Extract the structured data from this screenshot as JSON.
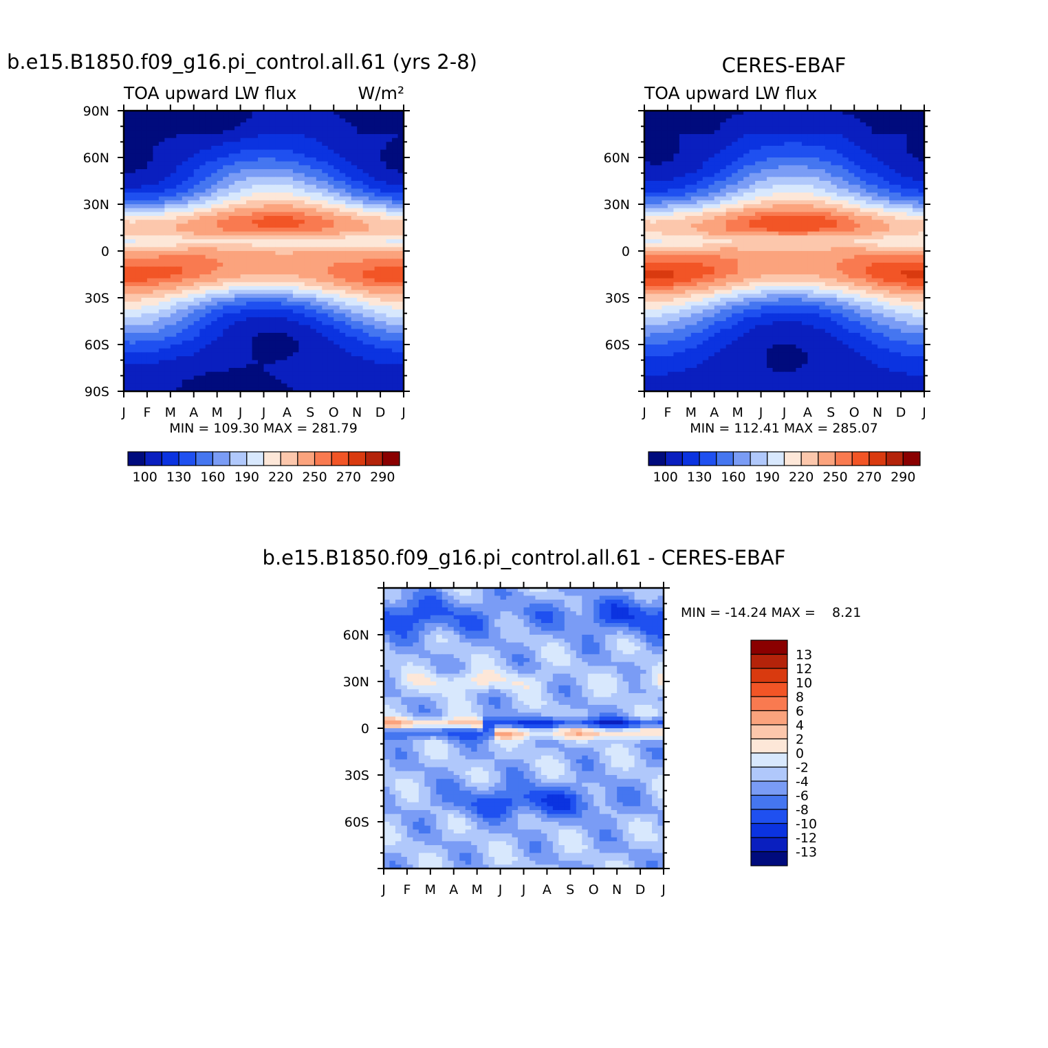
{
  "chart_data": [
    {
      "id": "model",
      "type": "heatmap",
      "title": "b.e15.B1850.f09_g16.pi_control.all.61 (yrs 2-8)",
      "subtitle_left": "TOA upward LW flux",
      "subtitle_right": "W/m²",
      "x_ticks": [
        "J",
        "F",
        "M",
        "A",
        "M",
        "J",
        "J",
        "A",
        "S",
        "O",
        "N",
        "D",
        "J"
      ],
      "y_ticks": [
        "90N",
        "60N",
        "30N",
        "0",
        "30S",
        "60S",
        "90S"
      ],
      "stats": "MIN = 109.30 MAX = 281.79",
      "levels": [
        "100",
        "130",
        "160",
        "190",
        "220",
        "250",
        "270",
        "290"
      ]
    },
    {
      "id": "obs",
      "type": "heatmap",
      "title": "CERES-EBAF",
      "subtitle_left": "TOA upward LW flux",
      "x_ticks": [
        "J",
        "F",
        "M",
        "A",
        "M",
        "J",
        "J",
        "A",
        "S",
        "O",
        "N",
        "D",
        "J"
      ],
      "y_ticks": [
        "60N",
        "30N",
        "0",
        "30S",
        "60S"
      ],
      "stats": "MIN = 112.41 MAX = 285.07",
      "levels": [
        "100",
        "130",
        "160",
        "190",
        "220",
        "250",
        "270",
        "290"
      ]
    },
    {
      "id": "diff",
      "type": "heatmap",
      "title": "b.e15.B1850.f09_g16.pi_control.all.61 - CERES-EBAF",
      "x_ticks": [
        "J",
        "F",
        "M",
        "A",
        "M",
        "J",
        "J",
        "A",
        "S",
        "O",
        "N",
        "D",
        "J"
      ],
      "y_ticks": [
        "60N",
        "30N",
        "0",
        "30S",
        "60S"
      ],
      "stats": "MIN = -14.24 MAX =    8.21",
      "levels": [
        "13",
        "12",
        "10",
        "8",
        "6",
        "4",
        "2",
        "0",
        "-2",
        "-4",
        "-6",
        "-8",
        "-10",
        "-12",
        "-13"
      ]
    }
  ],
  "colors": {
    "abs_palette": [
      "#000b7d",
      "#0a1fbf",
      "#0b33e0",
      "#1f50f0",
      "#4576f0",
      "#7a9cf5",
      "#b0c8fb",
      "#d8e8fd",
      "#fde7d8",
      "#fcc7ac",
      "#fba37d",
      "#f97a50",
      "#f25526",
      "#d93a0f",
      "#b4230a",
      "#8a0000"
    ],
    "diff_palette": [
      "#8a0000",
      "#b4230a",
      "#d93a0f",
      "#f25526",
      "#f97a50",
      "#fba37d",
      "#fcc7ac",
      "#fde7d8",
      "#d8e8fd",
      "#b0c8fb",
      "#7a9cf5",
      "#4576f0",
      "#1f50f0",
      "#0b33e0",
      "#0a1fbf",
      "#000b7d"
    ]
  }
}
